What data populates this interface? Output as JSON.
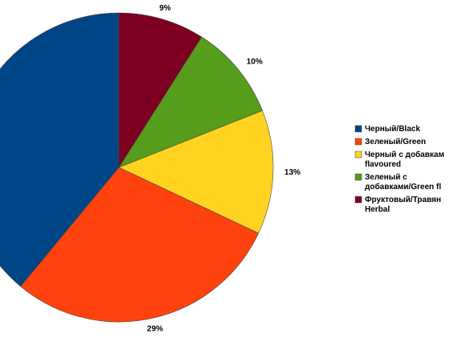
{
  "chart_data": {
    "type": "pie",
    "categories": [
      "Черный/Black",
      "Зеленый/Green",
      "Черный с добавкам\nflavoured",
      "Зеленый с\nдобавками/Green fl",
      "Фруктовый/Травян\nHerbal"
    ],
    "values": [
      39,
      29,
      13,
      10,
      9
    ],
    "value_labels": [
      null,
      "29%",
      "13%",
      "10%",
      "9%"
    ],
    "colors": [
      "#004586",
      "#ff420e",
      "#ffd320",
      "#579d1c",
      "#7e0021"
    ],
    "start_angle": 0,
    "direction": "counterclockwise",
    "legend": "right"
  }
}
